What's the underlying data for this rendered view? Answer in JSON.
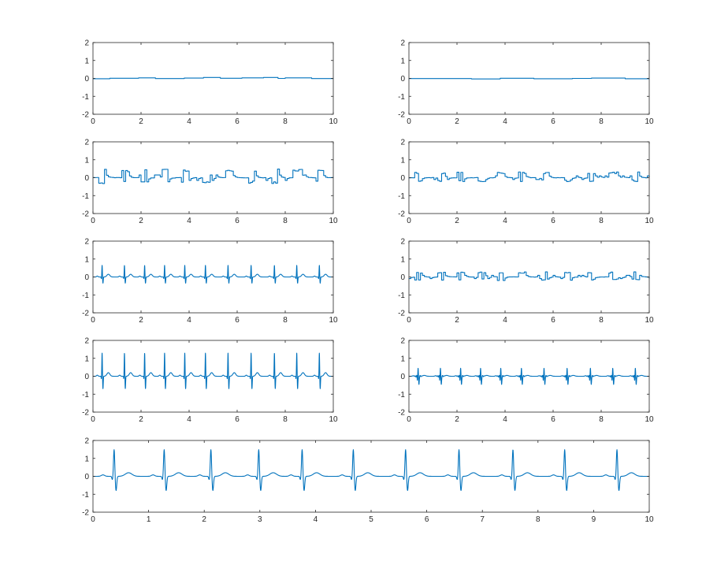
{
  "colors": {
    "line": "#0072bd",
    "axes": "#262626",
    "background": "#ffffff"
  },
  "chart_data": [
    {
      "type": "line",
      "panel": "row1-left",
      "xlim": [
        0,
        10
      ],
      "ylim": [
        -2,
        2
      ],
      "xticks": [
        "0",
        "2",
        "4",
        "6",
        "8",
        "10"
      ],
      "yticks": [
        "2",
        "1",
        "0",
        "-1",
        "-2"
      ],
      "signal": {
        "kind": "drift",
        "segments": [
          [
            0.0,
            -0.02
          ],
          [
            0.7,
            0.01
          ],
          [
            1.9,
            0.03
          ],
          [
            2.6,
            -0.01
          ],
          [
            3.8,
            0.02
          ],
          [
            4.6,
            0.05
          ],
          [
            5.3,
            0.01
          ],
          [
            6.2,
            0.03
          ],
          [
            7.1,
            0.05
          ],
          [
            7.7,
            0.0
          ],
          [
            8.0,
            0.03
          ],
          [
            9.1,
            -0.01
          ],
          [
            10.0,
            -0.01
          ]
        ]
      }
    },
    {
      "type": "line",
      "panel": "row1-right",
      "xlim": [
        0,
        10
      ],
      "ylim": [
        -2,
        2
      ],
      "xticks": [
        "0",
        "2",
        "4",
        "6",
        "8",
        "10"
      ],
      "yticks": [
        "2",
        "1",
        "0",
        "-1",
        "-2"
      ],
      "signal": {
        "kind": "drift",
        "segments": [
          [
            0.0,
            -0.01
          ],
          [
            2.6,
            -0.03
          ],
          [
            3.8,
            0.01
          ],
          [
            5.2,
            -0.02
          ],
          [
            6.8,
            0.0
          ],
          [
            7.6,
            0.02
          ],
          [
            9.0,
            -0.02
          ],
          [
            10.0,
            -0.02
          ]
        ]
      }
    },
    {
      "type": "line",
      "panel": "row2-left",
      "xlim": [
        0,
        10
      ],
      "ylim": [
        -2,
        2
      ],
      "xticks": [
        "0",
        "2",
        "4",
        "6",
        "8",
        "10"
      ],
      "yticks": [
        "2",
        "1",
        "0",
        "-1",
        "-2"
      ],
      "signal": {
        "kind": "detail",
        "scale": 0.3,
        "seed": 3,
        "beats": [
          0.38,
          1.31,
          2.15,
          2.98,
          3.82,
          4.68,
          5.62,
          6.58,
          7.55,
          8.48,
          9.42
        ]
      }
    },
    {
      "type": "line",
      "panel": "row2-right",
      "xlim": [
        0,
        10
      ],
      "ylim": [
        -2,
        2
      ],
      "xticks": [
        "0",
        "2",
        "4",
        "6",
        "8",
        "10"
      ],
      "yticks": [
        "2",
        "1",
        "0",
        "-1",
        "-2"
      ],
      "signal": {
        "kind": "detail",
        "scale": 0.2,
        "seed": 7,
        "beats": [
          0.38,
          1.31,
          2.15,
          2.98,
          3.82,
          4.68,
          5.62,
          6.58,
          7.55,
          8.48,
          9.42
        ]
      }
    },
    {
      "type": "line",
      "panel": "row3-left",
      "xlim": [
        0,
        10
      ],
      "ylim": [
        -2,
        2
      ],
      "xticks": [
        "0",
        "2",
        "4",
        "6",
        "8",
        "10"
      ],
      "yticks": [
        "2",
        "1",
        "0",
        "-1",
        "-2"
      ],
      "signal": {
        "kind": "ecg",
        "r": 0.65,
        "s": -0.35,
        "q": -0.1,
        "t": 0.15,
        "p": 0.05,
        "beats": [
          0.38,
          1.31,
          2.15,
          2.98,
          3.82,
          4.68,
          5.62,
          6.58,
          7.55,
          8.48,
          9.42
        ]
      }
    },
    {
      "type": "line",
      "panel": "row3-right",
      "xlim": [
        0,
        10
      ],
      "ylim": [
        -2,
        2
      ],
      "xticks": [
        "0",
        "2",
        "4",
        "6",
        "8",
        "10"
      ],
      "yticks": [
        "2",
        "1",
        "0",
        "-1",
        "-2"
      ],
      "signal": {
        "kind": "detail",
        "scale": 0.18,
        "seed": 11,
        "beats": [
          0.38,
          1.31,
          2.15,
          2.98,
          3.82,
          4.68,
          5.62,
          6.58,
          7.55,
          8.48,
          9.42
        ]
      }
    },
    {
      "type": "line",
      "panel": "row4-left",
      "xlim": [
        0,
        10
      ],
      "ylim": [
        -2,
        2
      ],
      "xticks": [
        "0",
        "2",
        "4",
        "6",
        "8",
        "10"
      ],
      "yticks": [
        "2",
        "1",
        "0",
        "-1",
        "-2"
      ],
      "signal": {
        "kind": "ecg",
        "r": 1.3,
        "s": -0.7,
        "q": -0.15,
        "t": 0.2,
        "p": 0.06,
        "beats": [
          0.38,
          1.31,
          2.15,
          2.98,
          3.82,
          4.68,
          5.62,
          6.58,
          7.55,
          8.48,
          9.42
        ]
      }
    },
    {
      "type": "line",
      "panel": "row4-right",
      "xlim": [
        0,
        10
      ],
      "ylim": [
        -2,
        2
      ],
      "xticks": [
        "0",
        "2",
        "4",
        "6",
        "8",
        "10"
      ],
      "yticks": [
        "2",
        "1",
        "0",
        "-1",
        "-2"
      ],
      "signal": {
        "kind": "ecg",
        "r": 0.45,
        "s": -0.45,
        "q": -0.2,
        "t": 0.05,
        "p": 0.03,
        "ripple": 0.08,
        "beats": [
          0.38,
          1.31,
          2.15,
          2.98,
          3.82,
          4.68,
          5.62,
          6.58,
          7.55,
          8.48,
          9.42
        ]
      }
    },
    {
      "type": "line",
      "panel": "bottom",
      "xlim": [
        0,
        10
      ],
      "ylim": [
        -2,
        2
      ],
      "xticks": [
        "0",
        "1",
        "2",
        "3",
        "4",
        "5",
        "6",
        "7",
        "8",
        "9",
        "10"
      ],
      "yticks": [
        "2",
        "1",
        "0",
        "-1",
        "-2"
      ],
      "signal": {
        "kind": "ecg",
        "r": 1.5,
        "s": -0.8,
        "q": -0.2,
        "t": 0.2,
        "p": 0.08,
        "beats": [
          0.38,
          1.28,
          2.12,
          2.98,
          3.76,
          4.68,
          5.62,
          6.58,
          7.55,
          8.48,
          9.42
        ]
      }
    }
  ]
}
